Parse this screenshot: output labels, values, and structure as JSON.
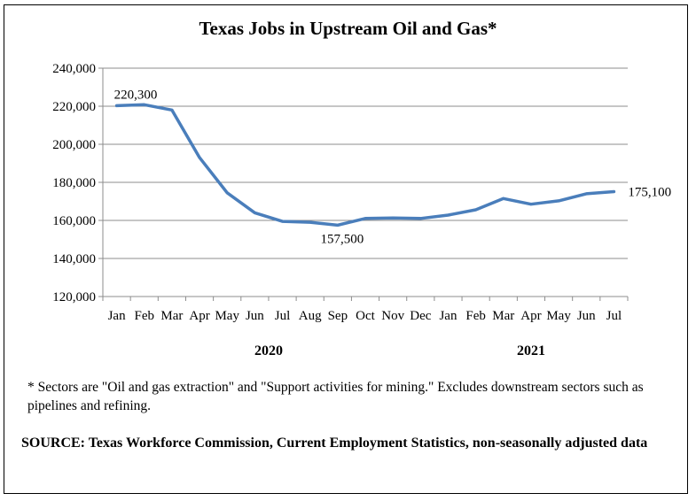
{
  "chart_data": {
    "type": "line",
    "title": "Texas Jobs in Upstream Oil and Gas*",
    "categories": [
      "Jan",
      "Feb",
      "Mar",
      "Apr",
      "May",
      "Jun",
      "Jul",
      "Aug",
      "Sep",
      "Oct",
      "Nov",
      "Dec",
      "Jan",
      "Feb",
      "Mar",
      "Apr",
      "May",
      "Jun",
      "Jul"
    ],
    "years": [
      {
        "label": "2020",
        "from": 0,
        "to": 11
      },
      {
        "label": "2021",
        "from": 12,
        "to": 18
      }
    ],
    "series": [
      {
        "values": [
          220300,
          220800,
          218000,
          193000,
          174500,
          164000,
          159500,
          159000,
          157500,
          161000,
          161300,
          161000,
          162800,
          165600,
          171500,
          168500,
          170300,
          174000,
          175100
        ]
      }
    ],
    "ylim": [
      120000,
      240000
    ],
    "yticks": [
      120000,
      140000,
      160000,
      180000,
      200000,
      220000,
      240000
    ],
    "ytick_labels": [
      "120,000",
      "140,000",
      "160,000",
      "180,000",
      "200,000",
      "220,000",
      "240,000"
    ],
    "grid": true,
    "line_color": "#4a7ebb",
    "annotations": [
      {
        "index": 0,
        "text": "220,300"
      },
      {
        "index": 8,
        "text": "157,500"
      },
      {
        "index": 18,
        "text": "175,100"
      }
    ]
  },
  "note": "* Sectors are \"Oil and gas extraction\" and \"Support activities for mining.\"  Excludes downstream sectors such as pipelines and refining.",
  "source": "SOURCE: Texas Workforce Commission, Current Employment Statistics, non-seasonally adjusted data"
}
